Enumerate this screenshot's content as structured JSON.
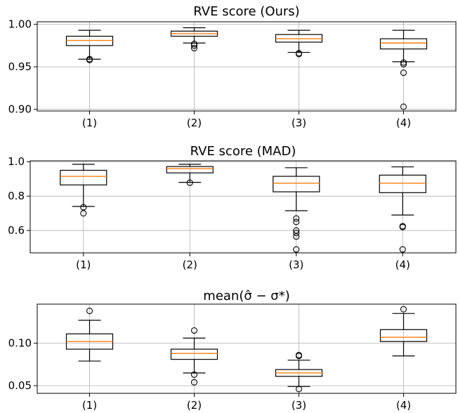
{
  "chart_data": [
    {
      "type": "box",
      "title": "RVE score (Ours)",
      "categories": [
        "(1)",
        "(2)",
        "(3)",
        "(4)"
      ],
      "ylim": [
        0.898,
        1.003
      ],
      "yticks": [
        0.9,
        0.95,
        1.0
      ],
      "ytick_labels": [
        "0.90",
        "0.95",
        "1.00"
      ],
      "grid": true,
      "boxes": [
        {
          "label": "(1)",
          "whisker_low": 0.959,
          "q1": 0.975,
          "median": 0.981,
          "q3": 0.986,
          "whisker_high": 0.993,
          "outliers": [
            0.958,
            0.959
          ]
        },
        {
          "label": "(2)",
          "whisker_low": 0.978,
          "q1": 0.986,
          "median": 0.989,
          "q3": 0.992,
          "whisker_high": 0.996,
          "outliers": [
            0.972,
            0.975,
            0.977
          ]
        },
        {
          "label": "(3)",
          "whisker_low": 0.967,
          "q1": 0.979,
          "median": 0.983,
          "q3": 0.988,
          "whisker_high": 0.993,
          "outliers": [
            0.965,
            0.966
          ]
        },
        {
          "label": "(4)",
          "whisker_low": 0.956,
          "q1": 0.971,
          "median": 0.978,
          "q3": 0.983,
          "whisker_high": 0.993,
          "outliers": [
            0.955,
            0.953,
            0.943,
            0.903
          ]
        }
      ]
    },
    {
      "type": "box",
      "title": "RVE score (MAD)",
      "categories": [
        "(1)",
        "(2)",
        "(3)",
        "(4)"
      ],
      "ylim": [
        0.47,
        1.005
      ],
      "yticks": [
        0.6,
        0.8,
        1.0
      ],
      "ytick_labels": [
        "0.6",
        "0.8",
        "1.0"
      ],
      "grid": true,
      "boxes": [
        {
          "label": "(1)",
          "whisker_low": 0.74,
          "q1": 0.865,
          "median": 0.915,
          "q3": 0.95,
          "whisker_high": 0.985,
          "outliers": [
            0.735,
            0.7
          ]
        },
        {
          "label": "(2)",
          "whisker_low": 0.88,
          "q1": 0.935,
          "median": 0.96,
          "q3": 0.972,
          "whisker_high": 0.985,
          "outliers": [
            0.878
          ]
        },
        {
          "label": "(3)",
          "whisker_low": 0.715,
          "q1": 0.825,
          "median": 0.875,
          "q3": 0.915,
          "whisker_high": 0.965,
          "outliers": [
            0.67,
            0.65,
            0.6,
            0.585,
            0.565,
            0.49
          ]
        },
        {
          "label": "(4)",
          "whisker_low": 0.69,
          "q1": 0.82,
          "median": 0.875,
          "q3": 0.922,
          "whisker_high": 0.97,
          "outliers": [
            0.625,
            0.62,
            0.49
          ]
        }
      ]
    },
    {
      "type": "box",
      "title": "mean(σ̂ − σ*)",
      "categories": [
        "(1)",
        "(2)",
        "(3)",
        "(4)"
      ],
      "ylim": [
        0.041,
        0.146
      ],
      "yticks": [
        0.05,
        0.1
      ],
      "ytick_labels": [
        "0.05",
        "0.10"
      ],
      "grid": true,
      "boxes": [
        {
          "label": "(1)",
          "whisker_low": 0.079,
          "q1": 0.093,
          "median": 0.102,
          "q3": 0.111,
          "whisker_high": 0.127,
          "outliers": [
            0.138
          ]
        },
        {
          "label": "(2)",
          "whisker_low": 0.065,
          "q1": 0.081,
          "median": 0.088,
          "q3": 0.093,
          "whisker_high": 0.106,
          "outliers": [
            0.115,
            0.063,
            0.054
          ]
        },
        {
          "label": "(3)",
          "whisker_low": 0.049,
          "q1": 0.061,
          "median": 0.065,
          "q3": 0.069,
          "whisker_high": 0.08,
          "outliers": [
            0.086,
            0.085,
            0.046
          ]
        },
        {
          "label": "(4)",
          "whisker_low": 0.085,
          "q1": 0.102,
          "median": 0.107,
          "q3": 0.116,
          "whisker_high": 0.135,
          "outliers": [
            0.14
          ]
        }
      ]
    }
  ],
  "colors": {
    "box": "#000000",
    "median": "#ff7f0e",
    "grid": "#b0b0b0"
  }
}
